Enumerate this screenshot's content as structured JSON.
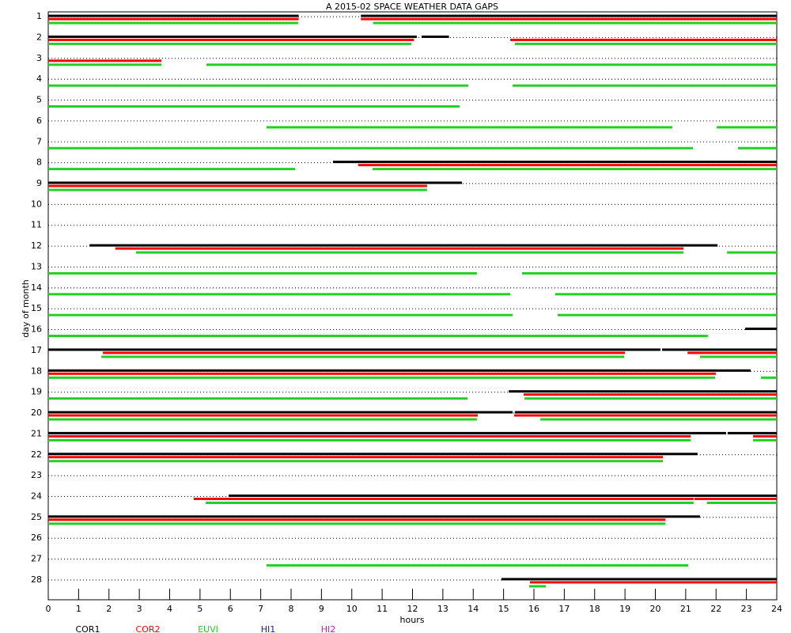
{
  "chart_data": {
    "type": "gaps",
    "title": "A  2015-02 SPACE WEATHER DATA GAPS",
    "x_label": "hours",
    "y_label": "day of month",
    "xlim": [
      0,
      24
    ],
    "xticks": [
      0,
      1,
      2,
      3,
      4,
      5,
      6,
      7,
      8,
      9,
      10,
      11,
      12,
      13,
      14,
      15,
      16,
      17,
      18,
      19,
      20,
      21,
      22,
      23,
      24
    ],
    "ylim": [
      0.77,
      28.95
    ],
    "yticks": [
      1,
      2,
      3,
      4,
      5,
      6,
      7,
      8,
      9,
      10,
      11,
      12,
      13,
      14,
      15,
      16,
      17,
      18,
      19,
      20,
      21,
      22,
      23,
      24,
      25,
      26,
      27,
      28
    ],
    "grid": true,
    "series": [
      {
        "name": "COR1",
        "color": "#000000",
        "segments": [
          [
            1,
            0,
            8.25
          ],
          [
            1,
            10.3,
            24
          ],
          [
            2,
            0,
            12.14
          ],
          [
            2,
            12.3,
            13.2
          ],
          [
            8,
            9.38,
            24
          ],
          [
            9,
            0,
            13.63
          ],
          [
            12,
            1.36,
            22.05
          ],
          [
            16,
            22.96,
            24
          ],
          [
            17,
            0,
            20.17
          ],
          [
            17,
            20.22,
            24
          ],
          [
            18,
            0,
            23.14
          ],
          [
            19,
            15.17,
            24
          ],
          [
            20,
            0,
            15.3
          ],
          [
            20,
            15.37,
            24
          ],
          [
            21,
            0,
            22.33
          ],
          [
            21,
            22.38,
            24
          ],
          [
            22,
            0,
            21.39
          ],
          [
            24,
            5.94,
            24
          ],
          [
            25,
            0,
            21.47
          ],
          [
            28,
            14.93,
            24
          ]
        ]
      },
      {
        "name": "COR2",
        "color": "#ff0000",
        "segments": [
          [
            1,
            0,
            8.25
          ],
          [
            1,
            10.3,
            24
          ],
          [
            2,
            0,
            12.04
          ],
          [
            2,
            15.22,
            24
          ],
          [
            3,
            0,
            3.73
          ],
          [
            8,
            10.21,
            24
          ],
          [
            9,
            0,
            12.48
          ],
          [
            12,
            2.21,
            20.93
          ],
          [
            17,
            1.8,
            19.0
          ],
          [
            17,
            21.06,
            24
          ],
          [
            18,
            0,
            21.99
          ],
          [
            19,
            15.66,
            24
          ],
          [
            20,
            0,
            14.15
          ],
          [
            20,
            15.35,
            24
          ],
          [
            21,
            0,
            21.16
          ],
          [
            21,
            23.22,
            24
          ],
          [
            22,
            0,
            20.25
          ],
          [
            24,
            4.79,
            21.26
          ],
          [
            24,
            21.29,
            24
          ],
          [
            25,
            0,
            20.33
          ],
          [
            28,
            15.87,
            24
          ]
        ]
      },
      {
        "name": "EUVI",
        "color": "#22d022",
        "segments": [
          [
            1,
            0,
            8.23
          ],
          [
            1,
            10.7,
            24
          ],
          [
            2,
            0,
            11.96
          ],
          [
            2,
            15.37,
            24
          ],
          [
            3,
            0,
            3.73
          ],
          [
            3,
            5.21,
            24
          ],
          [
            4,
            0,
            13.84
          ],
          [
            4,
            15.3,
            24
          ],
          [
            5,
            0,
            13.55
          ],
          [
            6,
            7.19,
            20.56
          ],
          [
            6,
            22.02,
            24
          ],
          [
            7,
            0,
            21.24
          ],
          [
            7,
            22.72,
            24
          ],
          [
            8,
            0,
            8.13
          ],
          [
            8,
            10.68,
            24
          ],
          [
            9,
            0,
            12.48
          ],
          [
            12,
            2.89,
            20.93
          ],
          [
            12,
            22.36,
            24
          ],
          [
            13,
            0,
            14.12
          ],
          [
            13,
            15.61,
            24
          ],
          [
            14,
            0,
            15.22
          ],
          [
            14,
            16.7,
            24
          ],
          [
            15,
            0,
            15.3
          ],
          [
            15,
            16.78,
            24
          ],
          [
            16,
            0,
            21.73
          ],
          [
            17,
            1.75,
            18.97
          ],
          [
            17,
            21.47,
            24
          ],
          [
            18,
            0,
            21.97
          ],
          [
            18,
            23.48,
            24
          ],
          [
            19,
            0,
            13.81
          ],
          [
            19,
            15.69,
            24
          ],
          [
            20,
            0,
            14.12
          ],
          [
            20,
            16.21,
            24
          ],
          [
            21,
            0,
            21.16
          ],
          [
            21,
            23.22,
            24
          ],
          [
            22,
            0,
            20.25
          ],
          [
            24,
            5.19,
            21.26
          ],
          [
            24,
            21.7,
            24
          ],
          [
            25,
            0,
            20.33
          ],
          [
            27,
            7.19,
            21.08
          ],
          [
            28,
            15.84,
            16.39
          ]
        ]
      },
      {
        "name": "HI1",
        "color": "#1a1aa0",
        "segments": []
      },
      {
        "name": "HI2",
        "color": "#c020c0",
        "segments": []
      }
    ]
  }
}
